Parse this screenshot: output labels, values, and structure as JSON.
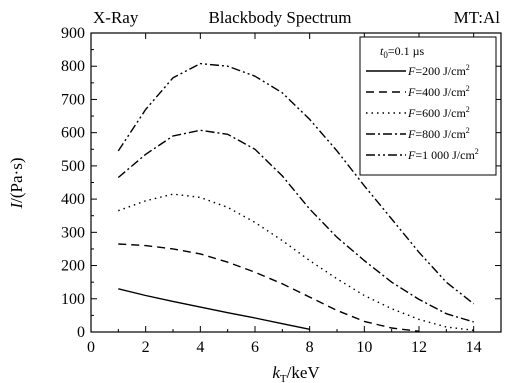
{
  "header": {
    "left": "X-Ray",
    "center": "Blackbody Spectrum",
    "right": "MT:Al"
  },
  "chart_data": {
    "type": "line",
    "xlabel_main": "k",
    "xlabel_sub": "T",
    "xlabel_unit": "/keV",
    "ylabel_main": "I",
    "ylabel_unit": "/(Pa·s)",
    "xlim": [
      0,
      15
    ],
    "ylim": [
      0,
      900
    ],
    "xticks": [
      0,
      2,
      4,
      6,
      8,
      10,
      12,
      14
    ],
    "yticks": [
      0,
      100,
      200,
      300,
      400,
      500,
      600,
      700,
      800,
      900
    ],
    "grid": false,
    "legend_position": "top-right",
    "legend_title_main": "t",
    "legend_title_sub": "0",
    "legend_title_rest": "=0.1 µs",
    "series": [
      {
        "name": "F=200 J/cm²",
        "label_var": "F",
        "label_rest": "=200 J/cm",
        "label_sup": "2",
        "dash": "solid",
        "x": [
          1,
          2,
          3,
          4,
          5,
          6,
          7,
          8
        ],
        "y": [
          130,
          110,
          92,
          75,
          58,
          42,
          25,
          8
        ]
      },
      {
        "name": "F=400 J/cm²",
        "label_var": "F",
        "label_rest": "=400 J/cm",
        "label_sup": "2",
        "dash": "dash",
        "x": [
          1,
          2,
          3,
          4,
          5,
          6,
          7,
          8,
          9,
          10,
          11,
          12
        ],
        "y": [
          265,
          260,
          250,
          235,
          210,
          180,
          145,
          105,
          65,
          32,
          12,
          2
        ]
      },
      {
        "name": "F=600 J/cm²",
        "label_var": "F",
        "label_rest": "=600 J/cm",
        "label_sup": "2",
        "dash": "dot",
        "x": [
          1,
          2,
          3,
          4,
          5,
          6,
          7,
          8,
          9,
          10,
          11,
          12,
          13,
          14
        ],
        "y": [
          365,
          395,
          415,
          405,
          375,
          330,
          275,
          215,
          160,
          110,
          70,
          38,
          15,
          5
        ]
      },
      {
        "name": "F=800 J/cm²",
        "label_var": "F",
        "label_rest": "=800 J/cm",
        "label_sup": "2",
        "dash": "dashdot",
        "x": [
          1,
          2,
          3,
          4,
          5,
          6,
          7,
          8,
          9,
          10,
          11,
          12,
          13,
          14
        ],
        "y": [
          465,
          535,
          590,
          607,
          595,
          550,
          470,
          370,
          285,
          215,
          150,
          98,
          55,
          30
        ]
      },
      {
        "name": "F=1 000 J/cm²",
        "label_var": "F",
        "label_rest": "=1 000 J/cm",
        "label_sup": "2",
        "dash": "dashdotdot",
        "x": [
          1,
          2,
          3,
          4,
          5,
          6,
          7,
          8,
          9,
          10,
          11,
          12,
          13,
          14
        ],
        "y": [
          545,
          670,
          765,
          808,
          800,
          770,
          720,
          640,
          545,
          440,
          340,
          240,
          150,
          85
        ]
      }
    ]
  }
}
